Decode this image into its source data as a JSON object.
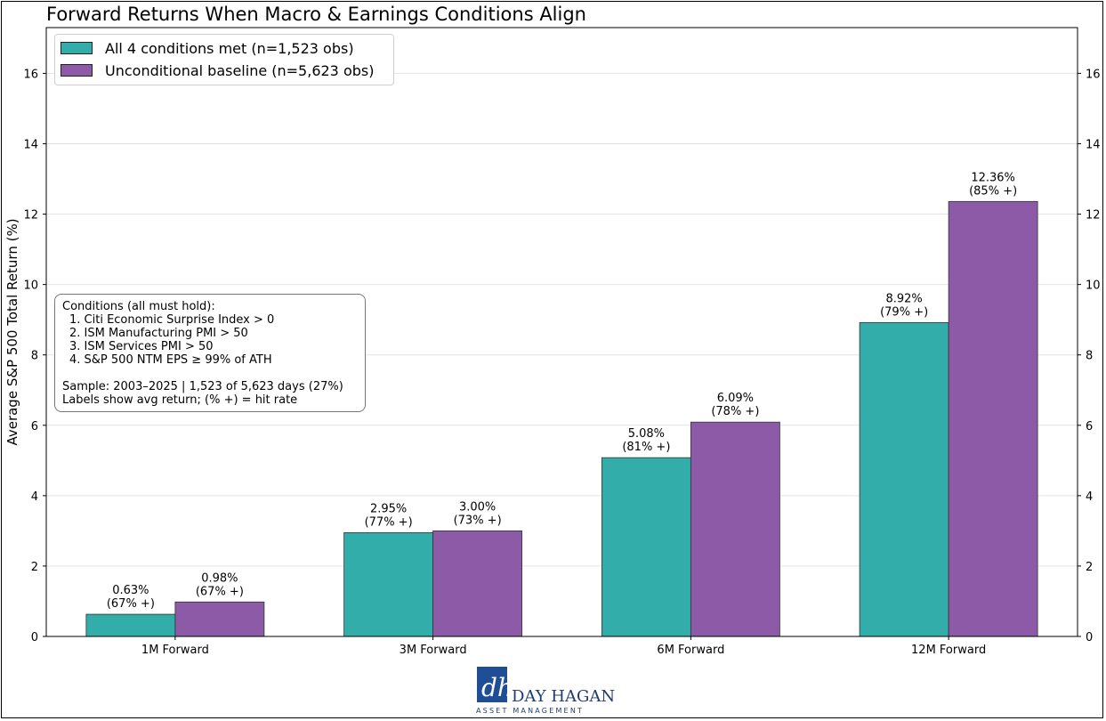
{
  "chart_data": {
    "type": "bar",
    "title": "Forward Returns When Macro & Earnings Conditions Align",
    "ylabel": "Average S&P 500 Total Return (%)",
    "xlabel": "",
    "ylim": [
      0,
      17.3
    ],
    "yticks": [
      0,
      2,
      4,
      6,
      8,
      10,
      12,
      14,
      16
    ],
    "grid": true,
    "legend_position": "top-left",
    "categories": [
      "1M Forward",
      "3M Forward",
      "6M Forward",
      "12M Forward"
    ],
    "series": [
      {
        "name": "All 4 conditions met (n=1,523 obs)",
        "color": "#33ada9",
        "values": [
          0.63,
          2.95,
          5.08,
          8.92
        ],
        "labels": [
          "0.63%",
          "2.95%",
          "5.08%",
          "8.92%"
        ],
        "hit_labels": [
          "(67% +)",
          "(77% +)",
          "(81% +)",
          "(79% +)"
        ]
      },
      {
        "name": "Unconditional baseline (n=5,623 obs)",
        "color": "#8c5aa7",
        "values": [
          0.98,
          3.0,
          6.09,
          12.36
        ],
        "labels": [
          "0.98%",
          "3.00%",
          "6.09%",
          "12.36%"
        ],
        "hit_labels": [
          "(67% +)",
          "(73% +)",
          "(78% +)",
          "(85% +)"
        ]
      }
    ],
    "annotation": {
      "heading": "Conditions (all must hold):",
      "items": [
        "1.  Citi Economic Surprise Index > 0",
        "2.  ISM Manufacturing PMI > 50",
        "3.  ISM Services PMI > 50",
        "4.  S&P 500 NTM EPS ≥ 99% of ATH"
      ],
      "sample": "Sample: 2003–2025  |  1,523 of 5,623 days (27%)",
      "note": "Labels show avg return; (% +) = hit rate"
    }
  },
  "logo": {
    "mark": "dh",
    "name": "DAY HAGAN",
    "subtitle": "ASSET MANAGEMENT",
    "color": "#1f3b73"
  }
}
